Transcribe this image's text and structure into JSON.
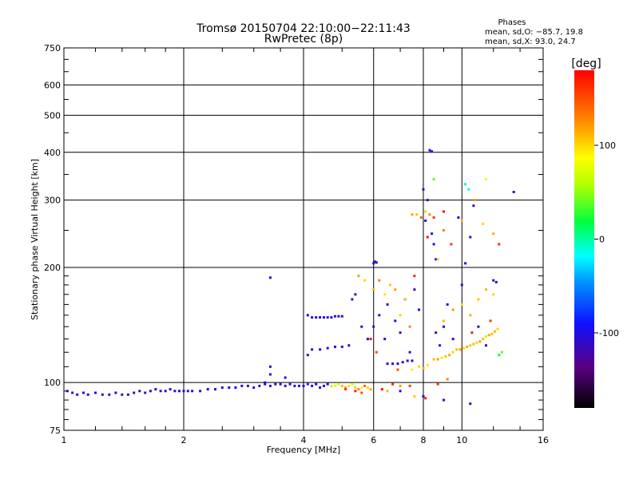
{
  "chart_data": {
    "type": "scatter",
    "title": "Tromsø 20150704 22:10:00−22:11:43",
    "subtitle": "RwPretec (8p)",
    "xlabel": "Frequency [MHz]",
    "ylabel": "Stationary phase Virtual Height [km]",
    "x_scale": "log",
    "y_scale": "log",
    "xlim": [
      1,
      16
    ],
    "ylim": [
      75,
      750
    ],
    "x_ticks": [
      1,
      2,
      4,
      6,
      8,
      10,
      16
    ],
    "x_tick_labels": [
      "1",
      "2",
      "4",
      "6",
      "8",
      "10",
      "16"
    ],
    "y_ticks": [
      75,
      100,
      200,
      300,
      400,
      500,
      600,
      750
    ],
    "y_tick_labels": [
      "75",
      "100",
      "200",
      "300",
      "400",
      "500",
      "600",
      "750"
    ],
    "grid": true,
    "stats_header": "Phases",
    "stats": [
      "mean, sd,O:  −85.7, 19.8",
      "mean, sd,X:   93.0, 24.7"
    ],
    "colorbar": {
      "title": "[deg]",
      "range": [
        -180,
        180
      ],
      "ticks": [
        100,
        0,
        -100
      ],
      "tick_labels": [
        "100",
        "0",
        "-100"
      ]
    },
    "series": [
      {
        "points": [
          [
            1.02,
            95,
            -105
          ],
          [
            1.05,
            94,
            -110
          ],
          [
            1.08,
            93,
            -108
          ],
          [
            1.12,
            94,
            -112
          ],
          [
            1.15,
            93,
            -100
          ],
          [
            1.2,
            94,
            -105
          ],
          [
            1.25,
            93,
            -108
          ],
          [
            1.3,
            93,
            -112
          ],
          [
            1.35,
            94,
            -105
          ],
          [
            1.4,
            93,
            -110
          ],
          [
            1.45,
            93,
            -100
          ],
          [
            1.5,
            94,
            -108
          ],
          [
            1.55,
            95,
            -105
          ],
          [
            1.6,
            94,
            -112
          ],
          [
            1.65,
            95,
            -110
          ],
          [
            1.7,
            96,
            -104
          ],
          [
            1.75,
            95,
            -108
          ],
          [
            1.8,
            95,
            -100
          ],
          [
            1.85,
            96,
            -112
          ],
          [
            1.9,
            95,
            -106
          ],
          [
            1.95,
            95,
            -110
          ],
          [
            2.0,
            95,
            -104
          ],
          [
            2.05,
            95,
            -108
          ],
          [
            2.1,
            95,
            -100
          ],
          [
            2.2,
            95,
            -112
          ],
          [
            2.3,
            96,
            -105
          ],
          [
            2.4,
            96,
            -110
          ],
          [
            2.5,
            97,
            -106
          ],
          [
            2.6,
            97,
            -112
          ],
          [
            2.7,
            97,
            -104
          ],
          [
            2.8,
            98,
            -108
          ],
          [
            2.9,
            98,
            -110
          ],
          [
            3.0,
            97,
            -104
          ],
          [
            3.1,
            98,
            -112
          ],
          [
            3.2,
            99,
            -108
          ],
          [
            3.3,
            98,
            -110
          ],
          [
            3.4,
            99,
            -106
          ],
          [
            3.5,
            99,
            -112
          ],
          [
            3.6,
            98,
            -104
          ],
          [
            3.7,
            99,
            -108
          ],
          [
            3.8,
            98,
            -90
          ],
          [
            3.9,
            98,
            -100
          ],
          [
            4.0,
            98,
            -110
          ],
          [
            4.1,
            99,
            -80
          ],
          [
            4.2,
            98,
            -106
          ],
          [
            4.3,
            99,
            -112
          ],
          [
            4.4,
            97,
            -104
          ],
          [
            4.5,
            98,
            -108
          ],
          [
            4.6,
            99,
            -110
          ],
          [
            4.7,
            98,
            60
          ],
          [
            4.8,
            98,
            90
          ],
          [
            4.9,
            99,
            80
          ],
          [
            5.0,
            98,
            110
          ],
          [
            5.1,
            97,
            120
          ],
          [
            5.2,
            98,
            95
          ],
          [
            5.3,
            99,
            70
          ],
          [
            5.4,
            97,
            105
          ],
          [
            5.5,
            96,
            130
          ],
          [
            5.6,
            97,
            85
          ],
          [
            5.7,
            98,
            140
          ],
          [
            5.8,
            97,
            100
          ],
          [
            5.9,
            96,
            115
          ]
        ]
      },
      {
        "points": [
          [
            3.2,
            100,
            -90
          ],
          [
            3.3,
            105,
            -100
          ],
          [
            3.3,
            110,
            -110
          ],
          [
            3.3,
            188,
            -120
          ],
          [
            3.6,
            103,
            -95
          ],
          [
            4.1,
            118,
            -120
          ],
          [
            4.1,
            150,
            -115
          ],
          [
            4.2,
            148,
            -112
          ],
          [
            4.3,
            148,
            -110
          ],
          [
            4.4,
            148,
            -108
          ],
          [
            4.5,
            148,
            -115
          ],
          [
            4.6,
            148,
            -110
          ],
          [
            4.7,
            148,
            -104
          ],
          [
            4.8,
            149,
            -120
          ],
          [
            4.9,
            149,
            -108
          ],
          [
            5.0,
            149,
            -110
          ],
          [
            4.2,
            122,
            -118
          ],
          [
            4.4,
            122,
            -106
          ],
          [
            4.6,
            123,
            -112
          ],
          [
            4.8,
            124,
            -108
          ],
          [
            5.0,
            124,
            -120
          ],
          [
            5.2,
            125,
            -104
          ],
          [
            5.3,
            165,
            -110
          ],
          [
            5.4,
            170,
            -112
          ],
          [
            5.6,
            140,
            -115
          ],
          [
            5.8,
            130,
            -108
          ],
          [
            6.0,
            140,
            -110
          ],
          [
            6.2,
            150,
            -104
          ],
          [
            6.4,
            130,
            -112
          ],
          [
            6.5,
            112,
            -106
          ],
          [
            6.7,
            112,
            -110
          ],
          [
            6.9,
            112,
            -104
          ],
          [
            7.1,
            113,
            -108
          ],
          [
            7.3,
            114,
            -112
          ],
          [
            7.5,
            114,
            -106
          ],
          [
            6.0,
            205,
            -110
          ],
          [
            6.05,
            207,
            -105
          ],
          [
            6.1,
            206,
            -112
          ],
          [
            6.5,
            160,
            -120
          ],
          [
            6.8,
            145,
            -100
          ],
          [
            7.0,
            135,
            -110
          ],
          [
            7.2,
            165,
            -112
          ],
          [
            7.4,
            120,
            -108
          ],
          [
            7.6,
            175,
            -115
          ],
          [
            7.8,
            155,
            -106
          ],
          [
            8.0,
            320,
            -110
          ],
          [
            8.1,
            265,
            -108
          ],
          [
            8.2,
            300,
            -112
          ],
          [
            8.4,
            245,
            -104
          ],
          [
            8.5,
            230,
            -110
          ],
          [
            8.6,
            210,
            -100
          ],
          [
            8.3,
            405,
            -100
          ],
          [
            8.4,
            402,
            -110
          ],
          [
            8.6,
            135,
            -115
          ],
          [
            8.8,
            125,
            -108
          ],
          [
            9.0,
            140,
            -112
          ],
          [
            9.2,
            160,
            -106
          ],
          [
            9.5,
            130,
            -110
          ],
          [
            9.8,
            270,
            -104
          ],
          [
            10.0,
            180,
            -108
          ],
          [
            10.2,
            205,
            -112
          ],
          [
            10.5,
            240,
            -100
          ],
          [
            10.7,
            290,
            -115
          ],
          [
            11.0,
            140,
            -110
          ],
          [
            11.5,
            125,
            -106
          ],
          [
            12.0,
            185,
            -112
          ],
          [
            12.2,
            183,
            -108
          ],
          [
            13.5,
            315,
            -110
          ],
          [
            7.0,
            95,
            -115
          ],
          [
            8.0,
            92,
            -108
          ],
          [
            9.0,
            90,
            -110
          ],
          [
            10.5,
            88,
            -112
          ]
        ]
      },
      {
        "points": [
          [
            5.5,
            190,
            120
          ],
          [
            5.7,
            185,
            100
          ],
          [
            6.0,
            175,
            110
          ],
          [
            6.2,
            185,
            130
          ],
          [
            6.4,
            170,
            95
          ],
          [
            6.6,
            180,
            105
          ],
          [
            6.8,
            175,
            120
          ],
          [
            7.0,
            150,
            100
          ],
          [
            7.2,
            165,
            110
          ],
          [
            7.4,
            140,
            130
          ],
          [
            7.5,
            275,
            120
          ],
          [
            7.7,
            275,
            110
          ],
          [
            7.9,
            270,
            140
          ],
          [
            8.1,
            280,
            100
          ],
          [
            8.3,
            275,
            125
          ],
          [
            8.5,
            270,
            160
          ],
          [
            8.7,
            210,
            100
          ],
          [
            8.5,
            115,
            110
          ],
          [
            8.7,
            115,
            120
          ],
          [
            8.9,
            116,
            95
          ],
          [
            9.1,
            117,
            105
          ],
          [
            9.3,
            118,
            115
          ],
          [
            9.5,
            120,
            100
          ],
          [
            9.7,
            122,
            110
          ],
          [
            9.9,
            122,
            120
          ],
          [
            10.1,
            123,
            100
          ],
          [
            10.3,
            124,
            115
          ],
          [
            10.5,
            125,
            105
          ],
          [
            10.7,
            126,
            110
          ],
          [
            10.9,
            127,
            100
          ],
          [
            11.1,
            128,
            120
          ],
          [
            11.3,
            130,
            110
          ],
          [
            11.5,
            132,
            100
          ],
          [
            11.7,
            133,
            115
          ],
          [
            11.9,
            134,
            105
          ],
          [
            12.1,
            136,
            110
          ],
          [
            12.3,
            138,
            100
          ],
          [
            9.0,
            145,
            110
          ],
          [
            9.5,
            155,
            120
          ],
          [
            10.0,
            160,
            100
          ],
          [
            10.5,
            150,
            115
          ],
          [
            11.0,
            165,
            105
          ],
          [
            11.5,
            175,
            110
          ],
          [
            12.0,
            170,
            100
          ],
          [
            9.0,
            250,
            130
          ],
          [
            10.0,
            265,
            110
          ],
          [
            10.8,
            300,
            120
          ],
          [
            11.3,
            260,
            100
          ],
          [
            12.0,
            245,
            115
          ],
          [
            11.5,
            340,
            80
          ],
          [
            10.2,
            330,
            0
          ],
          [
            10.4,
            320,
            -20
          ],
          [
            8.5,
            340,
            40
          ],
          [
            7.5,
            108,
            90
          ],
          [
            7.8,
            110,
            100
          ],
          [
            8.0,
            109,
            110
          ],
          [
            8.2,
            111,
            95
          ],
          [
            6.5,
            95,
            110
          ],
          [
            7.0,
            98,
            120
          ],
          [
            7.6,
            92,
            105
          ],
          [
            9.2,
            102,
            130
          ],
          [
            12.4,
            118,
            20
          ],
          [
            12.6,
            120,
            40
          ]
        ]
      },
      {
        "points": [
          [
            5.1,
            96,
            160
          ],
          [
            5.4,
            95,
            170
          ],
          [
            5.6,
            94,
            150
          ],
          [
            6.3,
            96,
            175
          ],
          [
            6.7,
            99,
            165
          ],
          [
            7.4,
            98,
            155
          ],
          [
            8.1,
            91,
            170
          ],
          [
            8.7,
            99,
            160
          ],
          [
            5.9,
            130,
            170
          ],
          [
            6.1,
            120,
            150
          ],
          [
            7.6,
            190,
            165
          ],
          [
            8.2,
            240,
            175
          ],
          [
            9.4,
            230,
            160
          ],
          [
            10.6,
            135,
            170
          ],
          [
            11.8,
            145,
            155
          ],
          [
            12.4,
            230,
            165
          ],
          [
            6.9,
            108,
            150
          ],
          [
            9.0,
            280,
            175
          ]
        ]
      }
    ]
  }
}
